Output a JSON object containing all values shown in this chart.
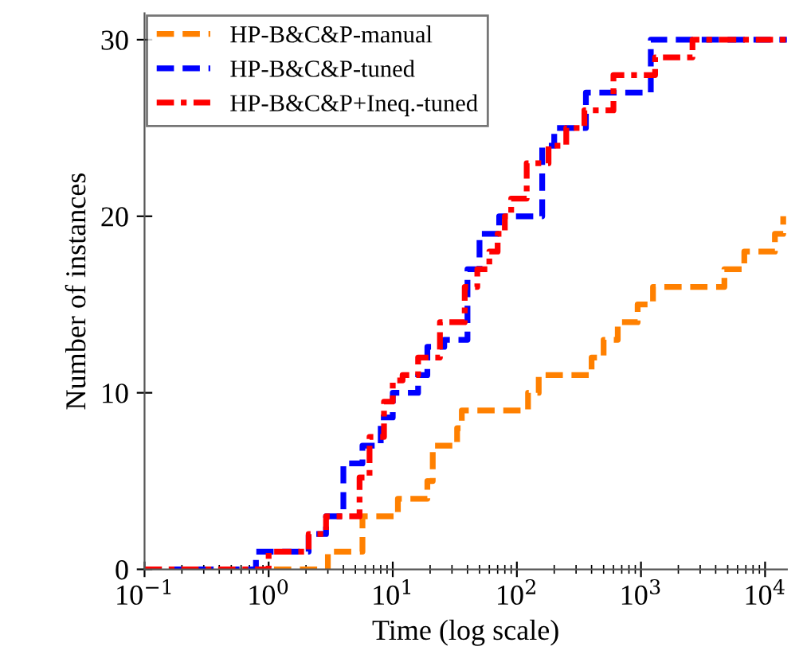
{
  "chart_data": {
    "type": "step",
    "xlabel": "Time (log scale)",
    "ylabel": "Number of instances",
    "log": "x",
    "xlim": [
      0.1,
      15000
    ],
    "ylim": [
      0,
      31.5
    ],
    "xticks": [
      {
        "value": 0.1,
        "label": "10$^{−1}$"
      },
      {
        "value": 1,
        "label": "10$^{0}$"
      },
      {
        "value": 10,
        "label": "10$^{1}$"
      },
      {
        "value": 100,
        "label": "10$^{2}$"
      },
      {
        "value": 1000,
        "label": "10$^{3}$"
      },
      {
        "value": 10000,
        "label": "10$^{4}$"
      }
    ],
    "yticks": [
      0,
      10,
      20,
      30
    ],
    "grid": false,
    "legend": "top left",
    "series": [
      {
        "name": "HP-B&C&P-manual",
        "color": "#ff8000",
        "line_style": "dashed",
        "x": [
          0.1,
          2.1,
          3,
          5.7,
          11,
          19,
          21,
          33,
          36,
          123,
          150,
          400,
          500,
          650,
          940,
          1250,
          4700,
          5500,
          6800,
          12000,
          14000
        ],
        "values": [
          0,
          0,
          1,
          3,
          4,
          5,
          7,
          8,
          9,
          10,
          11,
          12,
          13,
          14,
          15,
          16,
          17,
          17,
          18,
          19,
          20
        ]
      },
      {
        "name": "HP-B&C&P-tuned",
        "color": "#0000ff",
        "line_style": "dashed",
        "x": [
          0.1,
          0.79,
          2.1,
          2.9,
          4,
          5.7,
          8,
          10,
          16,
          19,
          26,
          40,
          50,
          60,
          72,
          160,
          200,
          250,
          360,
          1200,
          15000
        ],
        "values": [
          0,
          1,
          2,
          3,
          6,
          7,
          8.6,
          10,
          11,
          12.6,
          13,
          17,
          19,
          19,
          20,
          24,
          25,
          25,
          27,
          30,
          30
        ]
      },
      {
        "name": "HP-B&C&P+Ineq.-tuned",
        "color": "#ff0000",
        "line_style": "dashdot",
        "x": [
          0.1,
          1.0,
          2.1,
          2.9,
          5.4,
          6.5,
          8.5,
          10,
          12,
          16,
          24,
          38,
          48,
          60,
          70,
          80,
          90,
          120,
          180,
          250,
          350,
          600,
          1300,
          2600,
          15000
        ],
        "values": [
          0,
          1,
          2,
          3,
          5.2,
          7.5,
          9.5,
          10.7,
          11,
          12,
          14,
          16,
          17,
          18,
          19,
          20,
          21,
          23,
          24,
          25,
          26,
          28,
          29,
          30,
          30
        ]
      }
    ]
  }
}
